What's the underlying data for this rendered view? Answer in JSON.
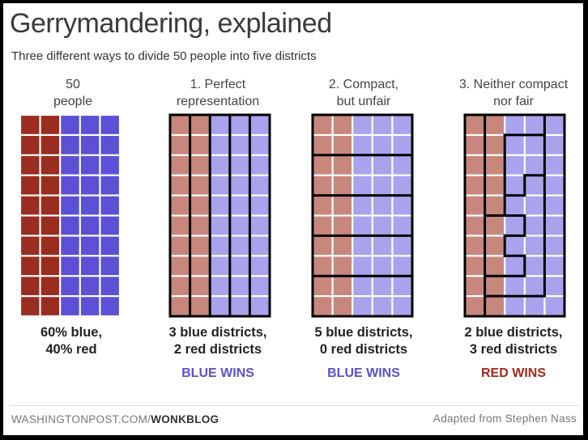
{
  "title": "Gerrymandering, explained",
  "subtitle": "Three different ways to divide 50 people into five districts",
  "colors": {
    "red_solid": "#9b2d20",
    "blue_solid": "#5b50d6",
    "red_light": "#c8877d",
    "blue_light": "#a9a2ec",
    "blue_text": "#5b50d6",
    "red_text": "#a3281c"
  },
  "columns": [
    {
      "heading": "50\npeople",
      "caption": "60% blue,\n40% red",
      "verdict": "",
      "verdict_color": "blue",
      "style": "solid",
      "districts": null
    },
    {
      "heading": "1. Perfect\nrepresentation",
      "caption": "3 blue districts,\n2 red districts",
      "verdict": "BLUE WINS",
      "verdict_color": "blue",
      "style": "light",
      "districts": [
        "ABCDE",
        "ABCDE",
        "ABCDE",
        "ABCDE",
        "ABCDE",
        "ABCDE",
        "ABCDE",
        "ABCDE",
        "ABCDE",
        "ABCDE"
      ]
    },
    {
      "heading": "2. Compact,\nbut unfair",
      "caption": "5 blue districts,\n0 red districts",
      "verdict": "BLUE WINS",
      "verdict_color": "blue",
      "style": "light",
      "districts": [
        "AAAAA",
        "AAAAA",
        "BBBBB",
        "BBBBB",
        "CCCCC",
        "CCCCC",
        "DDDDD",
        "DDDDD",
        "EEEEE",
        "EEEEE"
      ]
    },
    {
      "heading": "3. Neither compact\nnor fair",
      "caption": "2 blue districts,\n3 red districts",
      "verdict": "RED WINS",
      "verdict_color": "red",
      "style": "light",
      "districts": [
        "ABBBE",
        "ABCCE",
        "ABCCE",
        "ABCDE",
        "ABDDE",
        "ACCDE",
        "ACDDE",
        "ACCDE",
        "ADDDE",
        "AEEEE"
      ]
    }
  ],
  "grid": {
    "rows": 10,
    "cols": 5,
    "red_cols": 2
  },
  "footer": {
    "source_prefix": "WASHINGTONPOST.COM/",
    "source_bold": "WONKBLOG",
    "credit": "Adapted from Stephen Nass"
  }
}
